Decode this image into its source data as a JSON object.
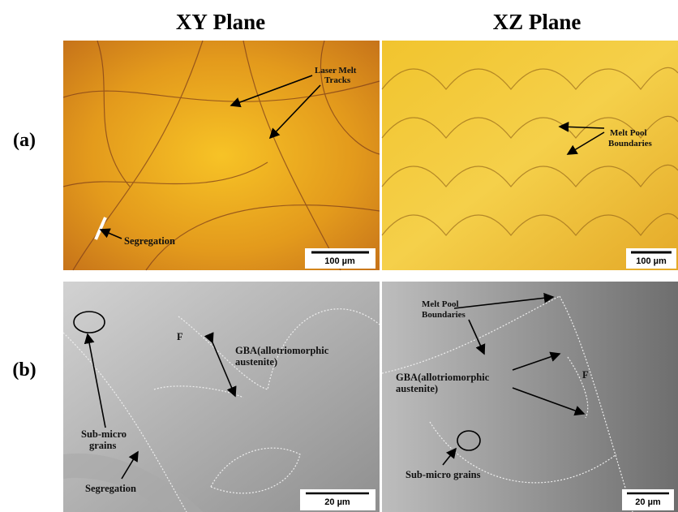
{
  "headers": [
    "XΥ Plane",
    "XZ Plane"
  ],
  "row_labels": [
    "(a)",
    "(b)"
  ],
  "panels": [
    {
      "annotations": [
        [
          "Laser Melt",
          "Tracks"
        ],
        [
          "Segregation"
        ]
      ],
      "scale_bar": "100 µm"
    },
    {
      "annotations": [
        [
          "Melt Pool",
          "Boundaries"
        ]
      ],
      "scale_bar": "100 µm"
    },
    {
      "annotations": [
        [
          "F"
        ],
        [
          "GBA(allotriomorphic",
          "austenite)"
        ],
        [
          "Sub-micro",
          "grains"
        ],
        [
          "Segregation"
        ]
      ],
      "scale_bar": "20 µm"
    },
    {
      "annotations": [
        [
          "Melt Pool",
          "Boundaries"
        ],
        [
          "GBA(allotriomorphic",
          "austenite)"
        ],
        [
          "F"
        ],
        [
          "Sub-micro grains"
        ]
      ],
      "scale_bar": "20 µm"
    }
  ]
}
